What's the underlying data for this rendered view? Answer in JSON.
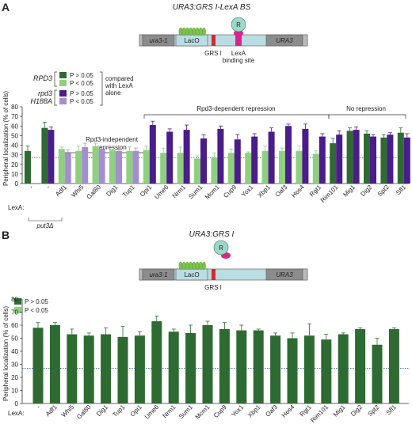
{
  "colors": {
    "dark_green": "#2e6b32",
    "light_green": "#8fd07f",
    "dark_purple": "#4a1d8a",
    "light_purple": "#a48ed0",
    "locus_gray": "#8c8c8c",
    "locus_blue": "#b9dde3",
    "lexa_magenta": "#d8248c",
    "grs_red": "#d8272d",
    "laco_green": "#7ec44a",
    "r_teal": "#9fd8c8"
  },
  "panel_a": {
    "label": "A",
    "construct_title": "URA3:GRS I-LexA BS",
    "locus": {
      "left": "ura3-1",
      "laco": "LacO",
      "right": "URA3",
      "grs": "GRS I",
      "lexa": "LexA",
      "binding_site": "binding site",
      "r": "R"
    },
    "legend": {
      "rpd3_label": "RPD3",
      "rpd3_h188a_label_1": "rpd3",
      "rpd3_h188a_label_2": "H188A",
      "p_gt": "P > 0.05",
      "p_lt": "P < 0.05",
      "compared_1": "compared",
      "compared_2": "with LexA",
      "compared_3": "alone"
    },
    "groups": {
      "independent_1": "Rpd3-independent",
      "independent_2": "repression",
      "dependent": "Rpd3-dependent repression",
      "none": "No repression"
    },
    "lexa_label": "LexA:",
    "put3_label": "put3Δ"
  },
  "panel_b": {
    "label": "B",
    "construct_title": "URA3:GRS I",
    "locus": {
      "left": "ura3-1",
      "laco": "LacO",
      "right": "URA3",
      "grs": "GRS I",
      "r": "R"
    },
    "legend": {
      "p_gt": "P > 0.05",
      "p_lt": "P < 0.05"
    },
    "lexa_label": "LexA:"
  },
  "chart_data": [
    {
      "type": "bar",
      "title": "",
      "ylabel": "Peripheral localization (% of cells)",
      "ylim": [
        0,
        80
      ],
      "yticks": [
        0,
        10,
        20,
        30,
        40,
        50,
        60,
        70,
        80
      ],
      "baseline": 27,
      "categories": [
        "-",
        "-",
        "Adf1",
        "Whi5",
        "Gal80",
        "Dig1",
        "Tup1",
        "Opi1",
        "Ume6",
        "Nrm1",
        "Sum1",
        "Mcm1",
        "Cup9",
        "Yox1",
        "Xbp1",
        "Oaf3",
        "Hos4",
        "Rgt1",
        "Rim101",
        "Mig1",
        "Dig2",
        "Spt2",
        "Sfl1"
      ],
      "series": [
        {
          "name": "RPD3",
          "values": [
            34,
            58,
            36,
            34,
            39,
            35,
            34,
            35,
            32,
            32,
            26,
            27,
            32,
            32,
            34,
            34,
            34,
            31,
            42,
            55,
            52,
            48,
            53
          ],
          "errors": [
            5,
            6,
            2,
            5,
            3,
            1,
            4,
            4,
            5,
            6,
            3,
            5,
            4,
            1,
            5,
            3,
            5,
            3,
            5,
            3,
            3,
            3,
            5
          ],
          "significance": [
            "",
            "gt",
            "lt",
            "lt",
            "lt",
            "lt",
            "lt",
            "lt",
            "lt",
            "lt",
            "lt",
            "lt",
            "lt",
            "lt",
            "lt",
            "lt",
            "lt",
            "lt",
            "gt",
            "gt",
            "gt",
            "gt",
            "gt"
          ]
        },
        {
          "name": "rpd3 H188A",
          "values": [
            null,
            56,
            32,
            38,
            36,
            34,
            34,
            61,
            54,
            56,
            47,
            57,
            46,
            49,
            54,
            60,
            57,
            49,
            51,
            56,
            49,
            51,
            48
          ],
          "errors": [
            null,
            3,
            3,
            4,
            2,
            1,
            3,
            4,
            3,
            5,
            4,
            3,
            5,
            3,
            4,
            2,
            5,
            3,
            4,
            3,
            2,
            2,
            4
          ],
          "significance": [
            "",
            "gt",
            "lt",
            "lt",
            "lt",
            "lt",
            "lt",
            "gt",
            "gt",
            "gt",
            "gt",
            "gt",
            "gt",
            "gt",
            "gt",
            "gt",
            "gt",
            "gt",
            "gt",
            "gt",
            "gt",
            "gt",
            "gt"
          ]
        }
      ]
    },
    {
      "type": "bar",
      "title": "",
      "ylabel": "Peripheral localization (% of cells)",
      "ylim": [
        0,
        80
      ],
      "yticks": [
        0,
        10,
        20,
        30,
        40,
        50,
        60,
        70,
        80
      ],
      "baseline": 27,
      "categories": [
        "-",
        "Adf1",
        "Whi5",
        "Gal80",
        "Dig1",
        "Tup1",
        "Opi1",
        "Ume6",
        "Nrm1",
        "Sum1",
        "Mcm1",
        "Cup9",
        "Yox1",
        "Xbp1",
        "Oaf3",
        "Hos4",
        "Rgt1",
        "Rim101",
        "Mig1",
        "Dig2",
        "Spt2",
        "Sfl1"
      ],
      "series": [
        {
          "values": [
            58,
            60,
            53,
            52,
            53,
            51,
            52,
            63,
            55,
            54,
            60,
            57,
            56,
            56,
            52,
            50,
            52,
            49,
            53,
            57,
            45,
            57
          ],
          "errors": [
            4,
            2,
            4,
            2,
            5,
            8,
            3,
            4,
            2,
            6,
            3,
            5,
            4,
            1,
            2,
            4,
            9,
            4,
            1,
            1,
            5,
            1
          ],
          "significance": [
            "gt",
            "gt",
            "gt",
            "gt",
            "gt",
            "gt",
            "gt",
            "gt",
            "gt",
            "gt",
            "gt",
            "gt",
            "gt",
            "gt",
            "gt",
            "gt",
            "gt",
            "gt",
            "gt",
            "gt",
            "gt",
            "gt"
          ]
        }
      ]
    }
  ]
}
